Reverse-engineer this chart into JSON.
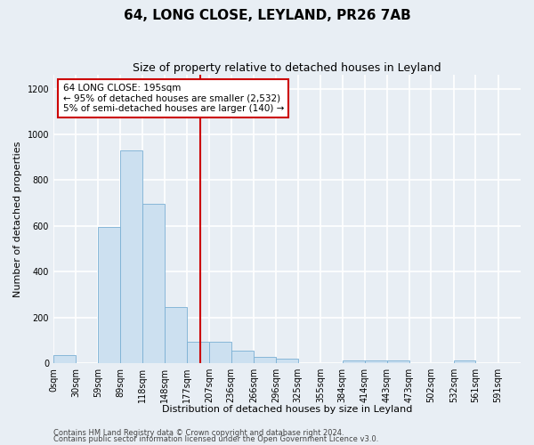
{
  "title": "64, LONG CLOSE, LEYLAND, PR26 7AB",
  "subtitle": "Size of property relative to detached houses in Leyland",
  "xlabel": "Distribution of detached houses by size in Leyland",
  "ylabel": "Number of detached properties",
  "bar_color": "#cce0f0",
  "bar_edge_color": "#7ab0d4",
  "vline_color": "#cc0000",
  "vline_x": 195,
  "categories": [
    "0sqm",
    "30sqm",
    "59sqm",
    "89sqm",
    "118sqm",
    "148sqm",
    "177sqm",
    "207sqm",
    "236sqm",
    "266sqm",
    "296sqm",
    "325sqm",
    "355sqm",
    "384sqm",
    "414sqm",
    "443sqm",
    "473sqm",
    "502sqm",
    "532sqm",
    "561sqm",
    "591sqm"
  ],
  "bin_edges": [
    0,
    30,
    59,
    89,
    118,
    148,
    177,
    207,
    236,
    266,
    296,
    325,
    355,
    384,
    414,
    443,
    473,
    502,
    532,
    561,
    591,
    621
  ],
  "values": [
    35,
    0,
    595,
    930,
    695,
    245,
    95,
    95,
    55,
    28,
    20,
    0,
    0,
    10,
    10,
    10,
    0,
    0,
    10,
    0,
    0
  ],
  "ylim": [
    0,
    1260
  ],
  "yticks": [
    0,
    200,
    400,
    600,
    800,
    1000,
    1200
  ],
  "annotation_text": "64 LONG CLOSE: 195sqm\n← 95% of detached houses are smaller (2,532)\n5% of semi-detached houses are larger (140) →",
  "annotation_box_color": "#ffffff",
  "annotation_box_edge": "#cc0000",
  "footer_line1": "Contains HM Land Registry data © Crown copyright and database right 2024.",
  "footer_line2": "Contains public sector information licensed under the Open Government Licence v3.0.",
  "background_color": "#e8eef4",
  "plot_bg_color": "#e8eef4",
  "grid_color": "#ffffff",
  "title_fontsize": 11,
  "subtitle_fontsize": 9,
  "axis_label_fontsize": 8,
  "tick_fontsize": 7,
  "annotation_fontsize": 7.5,
  "footer_fontsize": 6
}
